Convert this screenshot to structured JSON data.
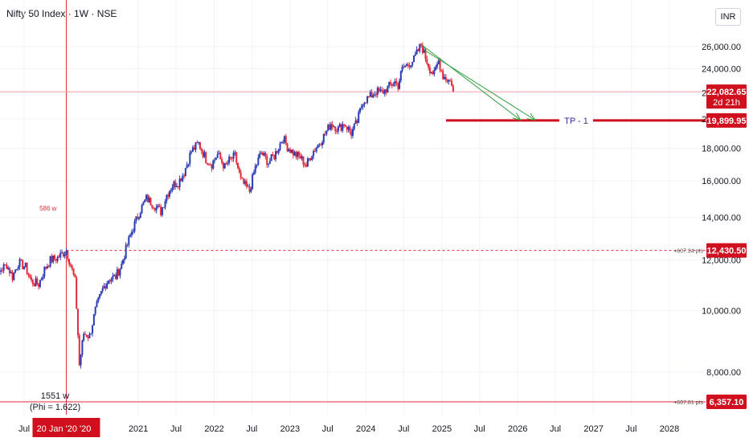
{
  "header": {
    "title": "Nifty 50 Index · 1W · NSE",
    "currency": "INR"
  },
  "colors": {
    "up": "#2a3cb5",
    "down": "#e52a3a",
    "accent": "#e52a3a",
    "arrow": "#2f9e3a",
    "tp_text": "#3c2aa8"
  },
  "chart_data": {
    "type": "candlestick",
    "ylim": [
      6000,
      27000
    ],
    "y_scale": "log",
    "y_ticks": [
      8000,
      10000,
      12000,
      14000,
      16000,
      18000,
      20000,
      22000,
      24000,
      26000
    ],
    "y_tick_labels": [
      "8,000.00",
      "10,000.00",
      "12,000.00",
      "14,000.00",
      "16,000.00",
      "18,000.00",
      "20,000.00",
      "22,000.00",
      "24,000.00",
      "26,000.00"
    ],
    "x_ticks": [
      "Jul",
      "2021",
      "Jul",
      "2022",
      "Jul",
      "2023",
      "Jul",
      "2024",
      "Jul",
      "2025",
      "Jul",
      "2026",
      "Jul",
      "2027",
      "Jul",
      "2028"
    ],
    "x_tick_dates": [
      "2019-07-01",
      "2021-01-01",
      "2021-07-01",
      "2022-01-01",
      "2022-07-01",
      "2023-01-01",
      "2023-07-01",
      "2024-01-01",
      "2024-07-01",
      "2025-01-01",
      "2025-07-01",
      "2026-01-01",
      "2026-07-01",
      "2027-01-01",
      "2027-07-01",
      "2028-01-01"
    ],
    "x_highlight": "20 Jan '20 '20",
    "price_series": {
      "dates": [
        "2019-01-07",
        "2019-02-04",
        "2019-03-11",
        "2019-04-08",
        "2019-05-06",
        "2019-06-03",
        "2019-07-08",
        "2019-08-05",
        "2019-09-09",
        "2019-10-07",
        "2019-11-04",
        "2019-12-09",
        "2020-01-20",
        "2020-02-10",
        "2020-03-02",
        "2020-03-23",
        "2020-04-13",
        "2020-05-11",
        "2020-06-08",
        "2020-07-13",
        "2020-08-10",
        "2020-09-14",
        "2020-10-12",
        "2020-11-09",
        "2020-12-07",
        "2021-01-11",
        "2021-02-08",
        "2021-03-15",
        "2021-04-19",
        "2021-05-17",
        "2021-06-14",
        "2021-07-12",
        "2021-08-09",
        "2021-09-13",
        "2021-10-18",
        "2021-11-22",
        "2021-12-20",
        "2022-01-17",
        "2022-02-21",
        "2022-03-14",
        "2022-04-11",
        "2022-05-09",
        "2022-06-20",
        "2022-07-18",
        "2022-08-15",
        "2022-09-19",
        "2022-10-17",
        "2022-11-28",
        "2022-12-19",
        "2023-01-23",
        "2023-02-20",
        "2023-03-20",
        "2023-04-17",
        "2023-05-15",
        "2023-06-12",
        "2023-07-17",
        "2023-08-21",
        "2023-09-18",
        "2023-10-23",
        "2023-11-20",
        "2023-12-18",
        "2024-01-15",
        "2024-02-19",
        "2024-03-18",
        "2024-04-15",
        "2024-05-20",
        "2024-06-04",
        "2024-06-24",
        "2024-07-22",
        "2024-08-19",
        "2024-09-23",
        "2024-10-14",
        "2024-11-04",
        "2024-11-25",
        "2024-12-16",
        "2025-01-06",
        "2025-01-27",
        "2025-02-17",
        "2025-02-24"
      ],
      "close": [
        11400,
        11000,
        11600,
        11800,
        11300,
        11900,
        11700,
        11100,
        11000,
        11600,
        12000,
        12100,
        12430,
        11800,
        11100,
        8200,
        9200,
        9100,
        10000,
        10800,
        11200,
        11300,
        11800,
        12700,
        13500,
        14400,
        15000,
        14700,
        14300,
        15200,
        15750,
        15900,
        16500,
        17800,
        18300,
        17300,
        17000,
        17600,
        16800,
        17200,
        17500,
        16000,
        15400,
        16800,
        17700,
        17100,
        17500,
        18700,
        18100,
        17600,
        17400,
        16900,
        17700,
        18200,
        18800,
        19700,
        19300,
        19700,
        19000,
        19800,
        21400,
        21600,
        22100,
        22000,
        22400,
        22900,
        22600,
        24000,
        24400,
        24800,
        26200,
        25000,
        24000,
        23500,
        24700,
        23400,
        23100,
        22800,
        22082.65
      ]
    },
    "annotations": {
      "current_price": {
        "value": 22082.65,
        "label": "22,082.65",
        "sub": "2d 21h"
      },
      "target": {
        "value": 19899.95,
        "label": "19,899.95",
        "text": "TP - 1"
      },
      "level_high": {
        "value": 12430.5,
        "label": "12,430.50",
        "pts": "+607.34 pts"
      },
      "level_low": {
        "value": 6357.1,
        "label": "6,357.10",
        "pts": "+607.81 pts"
      },
      "bars_short": "586 w",
      "bars_long": "1551 w",
      "phi": "(Phi = 1.622)"
    },
    "arrows": [
      {
        "from": [
          "2024-09-23",
          26200
        ],
        "to": [
          "2026-01-12",
          19950
        ]
      },
      {
        "from": [
          "2024-10-07",
          25700
        ],
        "to": [
          "2026-03-23",
          19950
        ]
      }
    ]
  }
}
